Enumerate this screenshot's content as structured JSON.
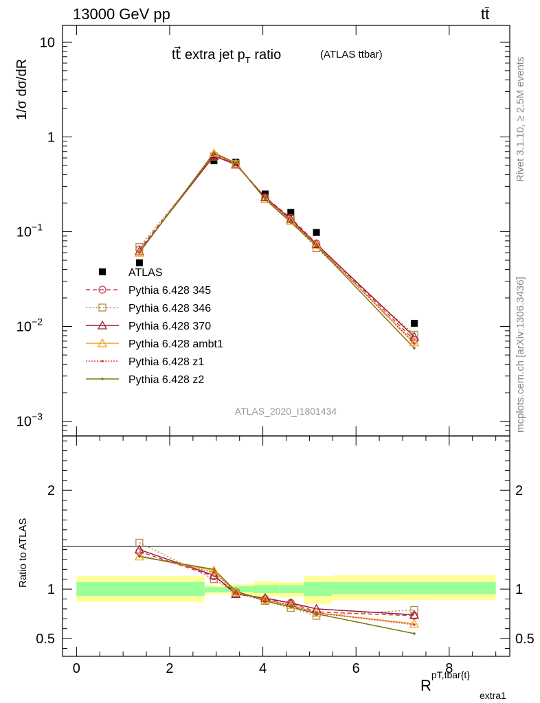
{
  "header": {
    "left": "13000 GeV pp",
    "right": "tt̄"
  },
  "side_text": {
    "rivet": "Rivet 3.1.10, ≥ 2.5M events",
    "mcplots": "mcplots.cern.ch [arXiv:1306.3436]"
  },
  "analysis_id": "ATLAS_2020_I1801434",
  "chart_data": [
    {
      "type": "scatter",
      "panel": "main",
      "title": "tt⃗ extra jet pT ratio",
      "title_main": "tt",
      "title_rest": " extra jet p",
      "title_sub": "T",
      "title_tail": " ratio",
      "title_tag": "(ATLAS ttbar)",
      "ylabel": "1/σ dσ/dR",
      "y_log": true,
      "ylim": [
        0.0007,
        15
      ],
      "xlim": [
        -0.3,
        9.3
      ],
      "y_ticks": [
        {
          "v": 10,
          "base": "10",
          "exp": ""
        },
        {
          "v": 1,
          "base": "1",
          "exp": ""
        },
        {
          "v": 0.1,
          "base": "10",
          "exp": "−1"
        },
        {
          "v": 0.01,
          "base": "10",
          "exp": "−2"
        },
        {
          "v": 0.001,
          "base": "10",
          "exp": "−3"
        }
      ],
      "legend_position": "center-left",
      "series": [
        {
          "name": "ATLAS",
          "color": "#000000",
          "marker": "square-filled",
          "x": [
            1.35,
            2.95,
            3.42,
            4.05,
            4.6,
            5.15,
            7.25
          ],
          "y": [
            0.047,
            0.56,
            0.54,
            0.25,
            0.16,
            0.098,
            0.0108
          ]
        },
        {
          "name": "Pythia 6.428 345",
          "color": "#c0405a",
          "marker": "circle-open",
          "dash": "6,4",
          "x": [
            1.35,
            2.95,
            3.42,
            4.05,
            4.6,
            5.15,
            7.25
          ],
          "y": [
            0.065,
            0.64,
            0.52,
            0.23,
            0.14,
            0.075,
            0.0072
          ]
        },
        {
          "name": "Pythia 6.428 346",
          "color": "#b48a4a",
          "marker": "square-open",
          "dash": "2,3",
          "x": [
            1.35,
            2.95,
            3.42,
            4.05,
            4.6,
            5.15,
            7.25
          ],
          "y": [
            0.069,
            0.62,
            0.52,
            0.22,
            0.13,
            0.067,
            0.0082
          ]
        },
        {
          "name": "Pythia 6.428 370",
          "color": "#9b1c32",
          "marker": "triangle-open",
          "dash": "",
          "x": [
            1.35,
            2.95,
            3.42,
            4.05,
            4.6,
            5.15,
            7.25
          ],
          "y": [
            0.062,
            0.63,
            0.51,
            0.23,
            0.135,
            0.074,
            0.0078
          ]
        },
        {
          "name": "Pythia 6.428 ambt1",
          "color": "#f3a21e",
          "marker": "triangle-open",
          "dash": "",
          "x": [
            1.35,
            2.95,
            3.42,
            4.05,
            4.6,
            5.15,
            7.25
          ],
          "y": [
            0.06,
            0.67,
            0.52,
            0.22,
            0.13,
            0.072,
            0.0068
          ]
        },
        {
          "name": "Pythia 6.428 z1",
          "color": "#e0383a",
          "marker": "dot",
          "dash": "2,2",
          "x": [
            1.35,
            2.95,
            3.42,
            4.05,
            4.6,
            5.15,
            7.25
          ],
          "y": [
            0.061,
            0.66,
            0.52,
            0.225,
            0.13,
            0.073,
            0.0066
          ]
        },
        {
          "name": "Pythia 6.428 z2",
          "color": "#7a7a10",
          "marker": "dot",
          "dash": "",
          "x": [
            1.35,
            2.95,
            3.42,
            4.05,
            4.6,
            5.15,
            7.25
          ],
          "y": [
            0.06,
            0.68,
            0.53,
            0.22,
            0.125,
            0.071,
            0.0059
          ]
        }
      ]
    },
    {
      "type": "line",
      "panel": "ratio",
      "ylabel": "Ratio to ATLAS",
      "xlabel": "R",
      "xlabel_sup": "pT,tbar{t}",
      "xlabel_sub": "extra1",
      "ylim": [
        0.32,
        2.55
      ],
      "xlim": [
        -0.3,
        9.3
      ],
      "y_ticks": [
        0.5,
        1,
        2
      ],
      "x_ticks": [
        0,
        2,
        4,
        6,
        8
      ],
      "bands": [
        {
          "x0": 0,
          "x1": 2.75,
          "yel": [
            0.87,
            1.13
          ],
          "grn": [
            0.93,
            1.07
          ]
        },
        {
          "x0": 2.75,
          "x1": 3.3,
          "yel": [
            0.95,
            1.04
          ],
          "grn": [
            0.97,
            1.02
          ]
        },
        {
          "x0": 3.3,
          "x1": 3.8,
          "yel": [
            0.94,
            1.05
          ],
          "grn": [
            0.97,
            1.03
          ]
        },
        {
          "x0": 3.8,
          "x1": 4.35,
          "yel": [
            0.93,
            1.08
          ],
          "grn": [
            0.96,
            1.04
          ]
        },
        {
          "x0": 4.35,
          "x1": 4.88,
          "yel": [
            0.92,
            1.07
          ],
          "grn": [
            0.96,
            1.04
          ]
        },
        {
          "x0": 4.88,
          "x1": 5.48,
          "yel": [
            0.85,
            1.13
          ],
          "grn": [
            0.93,
            1.07
          ]
        },
        {
          "x0": 5.48,
          "x1": 9.0,
          "yel": [
            0.89,
            1.14
          ],
          "grn": [
            0.95,
            1.07
          ]
        }
      ],
      "series": [
        {
          "name": "Pythia 6.428 345",
          "color": "#c0405a",
          "marker": "circle-open",
          "dash": "6,4",
          "x": [
            1.35,
            2.95,
            3.42,
            4.05,
            4.6,
            5.15,
            7.25
          ],
          "y": [
            1.38,
            1.13,
            0.97,
            0.9,
            0.86,
            0.77,
            0.73
          ]
        },
        {
          "name": "Pythia 6.428 346",
          "color": "#b48a4a",
          "marker": "square-open",
          "dash": "2,3",
          "x": [
            1.35,
            2.95,
            3.42,
            4.05,
            4.6,
            5.15,
            7.25
          ],
          "y": [
            1.47,
            1.1,
            0.96,
            0.88,
            0.81,
            0.73,
            0.79
          ]
        },
        {
          "name": "Pythia 6.428 370",
          "color": "#9b1c32",
          "marker": "triangle-open",
          "dash": "",
          "x": [
            1.35,
            2.95,
            3.42,
            4.05,
            4.6,
            5.15,
            7.25
          ],
          "y": [
            1.4,
            1.14,
            0.95,
            0.91,
            0.86,
            0.8,
            0.74
          ]
        },
        {
          "name": "Pythia 6.428 ambt1",
          "color": "#f3a21e",
          "marker": "triangle-open",
          "dash": "",
          "x": [
            1.35,
            2.95,
            3.42,
            4.05,
            4.6,
            5.15,
            7.25
          ],
          "y": [
            1.33,
            1.19,
            0.97,
            0.89,
            0.84,
            0.76,
            0.65
          ]
        },
        {
          "name": "Pythia 6.428 z1",
          "color": "#e0383a",
          "marker": "dot",
          "dash": "2,2",
          "x": [
            1.35,
            2.95,
            3.42,
            4.05,
            4.6,
            5.15,
            7.25
          ],
          "y": [
            1.34,
            1.17,
            0.97,
            0.9,
            0.83,
            0.76,
            0.64
          ]
        },
        {
          "name": "Pythia 6.428 z2",
          "color": "#7a7a10",
          "marker": "dot",
          "dash": "",
          "x": [
            1.35,
            2.95,
            3.42,
            4.05,
            4.6,
            5.15,
            7.25
          ],
          "y": [
            1.33,
            1.2,
            0.98,
            0.88,
            0.82,
            0.75,
            0.55
          ]
        }
      ]
    }
  ]
}
